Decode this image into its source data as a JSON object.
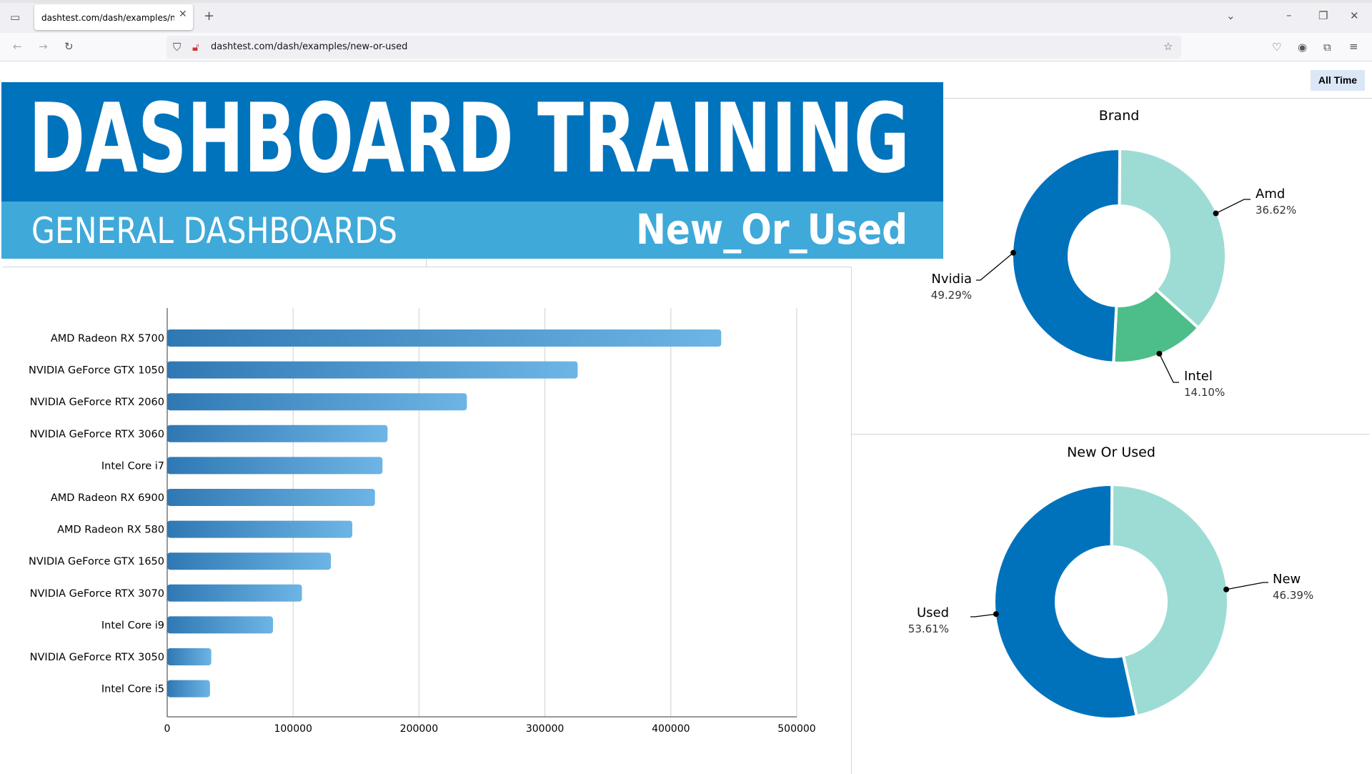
{
  "browser": {
    "tab_title": "dashtest.com/dash/examples/new-or-used",
    "url": "dashtest.com/dash/examples/new-or-used"
  },
  "banner": {
    "title": "DASHBOARD TRAINING",
    "subtitle": "GENERAL DASHBOARDS",
    "page_name": "New_Or_Used",
    "colors": {
      "top": "#0073bd",
      "bottom": "#3fa9d9"
    }
  },
  "filter": {
    "all_time_label": "All Time"
  },
  "chart_data": [
    {
      "type": "bar",
      "orientation": "horizontal",
      "categories": [
        "AMD Radeon RX 5700",
        "NVIDIA GeForce GTX 1050",
        "NVIDIA GeForce RTX 2060",
        "NVIDIA GeForce RTX 3060",
        "Intel Core i7",
        "AMD Radeon RX 6900",
        "AMD Radeon RX 580",
        "NVIDIA GeForce GTX 1650",
        "NVIDIA GeForce RTX 3070",
        "Intel Core i9",
        "NVIDIA GeForce RTX 3050",
        "Intel Core i5"
      ],
      "values": [
        440000,
        326000,
        238000,
        175000,
        171000,
        165000,
        147000,
        130000,
        107000,
        84000,
        35000,
        34000
      ],
      "xlim": [
        0,
        500000
      ],
      "xticks": [
        "0",
        "100000",
        "200000",
        "300000",
        "400000",
        "500000"
      ],
      "grid": true,
      "colors": {
        "bar_start": "#2f78b3",
        "bar_end": "#6db5e5"
      }
    },
    {
      "type": "pie",
      "donut": true,
      "title": "Brand",
      "labels": [
        "Amd",
        "Intel",
        "Nvidia"
      ],
      "values": [
        36.62,
        14.1,
        49.29
      ],
      "value_labels": [
        "36.62%",
        "14.10%",
        "49.29%"
      ],
      "colors": [
        "#9ddcd5",
        "#4dbd8a",
        "#0072bc"
      ]
    },
    {
      "type": "pie",
      "donut": true,
      "title": "New Or Used",
      "labels": [
        "New",
        "Used"
      ],
      "values": [
        46.39,
        53.61
      ],
      "value_labels": [
        "46.39%",
        "53.61%"
      ],
      "colors": [
        "#9ddcd5",
        "#0072bc"
      ]
    }
  ]
}
